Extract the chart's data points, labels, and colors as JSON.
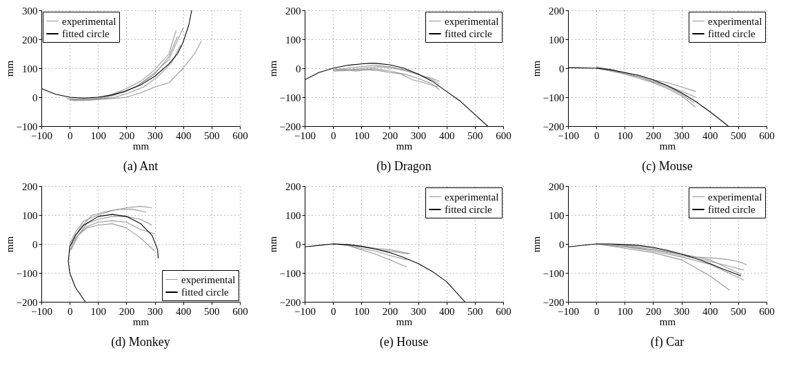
{
  "chart_data": [
    {
      "type": "line",
      "title": "(a)  Ant",
      "xlabel": "mm",
      "ylabel": "mm",
      "xlim": [
        -100,
        600
      ],
      "ylim": [
        -100,
        300
      ],
      "xticks": [
        -100,
        0,
        100,
        200,
        300,
        400,
        500,
        600
      ],
      "yticks": [
        -100,
        0,
        100,
        200,
        300
      ],
      "grid": true,
      "legend": "top left",
      "series": [
        {
          "name": "experimental",
          "color": "#999999",
          "x": [
            0,
            50,
            100,
            150,
            200,
            250,
            300,
            350,
            380
          ],
          "values": [
            -8,
            -5,
            -5,
            5,
            20,
            45,
            80,
            140,
            210
          ]
        },
        {
          "color": "#999999",
          "x": [
            -10,
            50,
            100,
            150,
            200,
            250,
            300,
            350,
            375
          ],
          "values": [
            -5,
            -10,
            -8,
            10,
            30,
            55,
            95,
            150,
            230
          ]
        },
        {
          "color": "#999999",
          "x": [
            10,
            60,
            110,
            160,
            210,
            260,
            310,
            360,
            390
          ],
          "values": [
            -12,
            -10,
            -5,
            0,
            15,
            35,
            70,
            120,
            180
          ]
        },
        {
          "color": "#999999",
          "x": [
            0,
            50,
            100,
            150,
            200,
            250,
            300,
            350,
            400,
            440,
            465
          ],
          "values": [
            -10,
            -12,
            -8,
            -5,
            0,
            15,
            35,
            50,
            100,
            150,
            195
          ]
        },
        {
          "color": "#999999",
          "x": [
            0,
            60,
            120,
            180,
            240,
            300,
            350,
            400
          ],
          "values": [
            -5,
            -8,
            0,
            15,
            40,
            85,
            130,
            240
          ]
        },
        {
          "name": "fitted circle",
          "color": "#000000",
          "x": [
            -100,
            -50,
            0,
            50,
            100,
            150,
            200,
            250,
            300,
            350,
            380,
            400,
            420,
            430
          ],
          "values": [
            30,
            10,
            0,
            -3,
            0,
            8,
            22,
            42,
            72,
            115,
            150,
            190,
            250,
            300
          ]
        }
      ]
    },
    {
      "type": "line",
      "title": "(b)  Dragon",
      "xlabel": "mm",
      "ylabel": "mm",
      "xlim": [
        -100,
        600
      ],
      "ylim": [
        -200,
        200
      ],
      "xticks": [
        -100,
        0,
        100,
        200,
        300,
        400,
        500,
        600
      ],
      "yticks": [
        -200,
        -100,
        0,
        100,
        200
      ],
      "grid": true,
      "legend": "top right",
      "series": [
        {
          "name": "experimental",
          "color": "#999999",
          "x": [
            0,
            50,
            100,
            150,
            200,
            250,
            300,
            350,
            375
          ],
          "values": [
            -5,
            0,
            5,
            10,
            5,
            -5,
            -20,
            -40,
            -55
          ]
        },
        {
          "color": "#999999",
          "x": [
            0,
            50,
            100,
            150,
            200,
            250,
            300,
            350,
            375
          ],
          "values": [
            -10,
            -8,
            -5,
            -2,
            -10,
            -20,
            -35,
            -55,
            -75
          ]
        },
        {
          "color": "#999999",
          "x": [
            10,
            60,
            110,
            160,
            210,
            260,
            310,
            350,
            375
          ],
          "values": [
            -5,
            -5,
            0,
            5,
            0,
            -10,
            -25,
            -35,
            -45
          ]
        },
        {
          "color": "#999999",
          "x": [
            0,
            40,
            80,
            120,
            160,
            200,
            240,
            280,
            320,
            370
          ],
          "values": [
            -8,
            -5,
            -10,
            -5,
            -8,
            -15,
            -20,
            -40,
            -50,
            -65
          ]
        },
        {
          "name": "fitted circle",
          "color": "#000000",
          "x": [
            -100,
            -50,
            0,
            50,
            100,
            130,
            150,
            200,
            250,
            300,
            350,
            400,
            450,
            500,
            545
          ],
          "values": [
            -40,
            -15,
            0,
            10,
            15,
            17,
            17,
            12,
            0,
            -20,
            -45,
            -80,
            -115,
            -160,
            -200
          ]
        }
      ]
    },
    {
      "type": "line",
      "title": "(c)  Mouse",
      "xlabel": "mm",
      "ylabel": "mm",
      "xlim": [
        -100,
        600
      ],
      "ylim": [
        -200,
        200
      ],
      "xticks": [
        -100,
        0,
        100,
        200,
        300,
        400,
        500,
        600
      ],
      "yticks": [
        -200,
        -100,
        0,
        100,
        200
      ],
      "grid": true,
      "legend": "top right",
      "series": [
        {
          "name": "experimental",
          "color": "#999999",
          "x": [
            0,
            50,
            100,
            150,
            200,
            250,
            300,
            350
          ],
          "values": [
            5,
            -5,
            -15,
            -25,
            -40,
            -50,
            -65,
            -80
          ]
        },
        {
          "color": "#999999",
          "x": [
            0,
            50,
            100,
            150,
            200,
            250,
            300,
            350
          ],
          "values": [
            0,
            -8,
            -18,
            -30,
            -45,
            -60,
            -80,
            -100
          ]
        },
        {
          "color": "#999999",
          "x": [
            0,
            50,
            100,
            150,
            200,
            250,
            300,
            350
          ],
          "values": [
            0,
            -10,
            -20,
            -35,
            -50,
            -70,
            -95,
            -135
          ]
        },
        {
          "color": "#999999",
          "x": [
            0,
            50,
            100,
            150,
            200,
            250,
            300,
            345
          ],
          "values": [
            2,
            -5,
            -20,
            -30,
            -48,
            -65,
            -90,
            -120
          ]
        },
        {
          "name": "fitted circle",
          "color": "#000000",
          "x": [
            -100,
            0,
            50,
            100,
            150,
            200,
            250,
            300,
            350,
            400,
            465
          ],
          "values": [
            2,
            0,
            -5,
            -15,
            -25,
            -40,
            -60,
            -85,
            -115,
            -150,
            -200
          ]
        }
      ]
    },
    {
      "type": "line",
      "title": "(d)  Monkey",
      "xlabel": "mm",
      "ylabel": "mm",
      "xlim": [
        -100,
        600
      ],
      "ylim": [
        -200,
        200
      ],
      "xticks": [
        -100,
        0,
        100,
        200,
        300,
        400,
        500,
        600
      ],
      "yticks": [
        -200,
        -100,
        0,
        100,
        200
      ],
      "grid": true,
      "legend": "bottom right",
      "series": [
        {
          "name": "experimental",
          "color": "#999999",
          "x": [
            0,
            20,
            50,
            100,
            150,
            200,
            250,
            290
          ],
          "values": [
            0,
            40,
            80,
            100,
            115,
            125,
            130,
            125
          ]
        },
        {
          "color": "#999999",
          "x": [
            5,
            30,
            60,
            100,
            150,
            200,
            250,
            290
          ],
          "values": [
            -20,
            30,
            70,
            85,
            95,
            95,
            85,
            65
          ]
        },
        {
          "color": "#999999",
          "x": [
            0,
            20,
            60,
            100,
            150,
            200,
            250,
            300
          ],
          "values": [
            -25,
            20,
            60,
            75,
            80,
            75,
            50,
            35
          ]
        },
        {
          "color": "#999999",
          "x": [
            0,
            30,
            60,
            100,
            150,
            200,
            250,
            300
          ],
          "values": [
            -10,
            30,
            55,
            65,
            70,
            55,
            20,
            -25
          ]
        },
        {
          "color": "#999999",
          "x": [
            10,
            40,
            80,
            120,
            170,
            220,
            270
          ],
          "values": [
            10,
            60,
            100,
            110,
            120,
            120,
            110
          ]
        },
        {
          "name": "fitted circle",
          "color": "#000000",
          "x": [
            55,
            20,
            0,
            -5,
            0,
            20,
            50,
            100,
            150,
            200,
            250,
            290,
            310,
            312
          ],
          "values": [
            -200,
            -150,
            -100,
            -60,
            -10,
            30,
            65,
            95,
            102,
            95,
            70,
            30,
            -20,
            -50
          ]
        }
      ]
    },
    {
      "type": "line",
      "title": "(e)  House",
      "xlabel": "mm",
      "ylabel": "mm",
      "xlim": [
        -100,
        600
      ],
      "ylim": [
        -200,
        200
      ],
      "xticks": [
        -100,
        0,
        100,
        200,
        300,
        400,
        500,
        600
      ],
      "yticks": [
        -200,
        -100,
        0,
        100,
        200
      ],
      "grid": true,
      "legend": "top right",
      "series": [
        {
          "name": "experimental",
          "color": "#999999",
          "x": [
            0,
            50,
            100,
            150,
            200,
            265
          ],
          "values": [
            0,
            -3,
            -10,
            -18,
            -25,
            -35
          ]
        },
        {
          "color": "#999999",
          "x": [
            0,
            50,
            100,
            150,
            200,
            260
          ],
          "values": [
            0,
            -5,
            -15,
            -25,
            -40,
            -55
          ]
        },
        {
          "color": "#999999",
          "x": [
            0,
            50,
            100,
            150,
            200,
            260
          ],
          "values": [
            0,
            -5,
            -20,
            -35,
            -55,
            -80
          ]
        },
        {
          "color": "#999999",
          "x": [
            0,
            50,
            100,
            150,
            200,
            270
          ],
          "values": [
            0,
            -2,
            -8,
            -15,
            -20,
            -33
          ]
        },
        {
          "name": "fitted circle",
          "color": "#000000",
          "x": [
            -100,
            -50,
            0,
            50,
            100,
            150,
            200,
            250,
            300,
            350,
            400,
            465
          ],
          "values": [
            -10,
            -5,
            0,
            -2,
            -8,
            -18,
            -30,
            -47,
            -68,
            -95,
            -130,
            -200
          ]
        }
      ]
    },
    {
      "type": "line",
      "title": "(f)  Car",
      "xlabel": "mm",
      "ylabel": "mm",
      "xlim": [
        -100,
        600
      ],
      "ylim": [
        -200,
        200
      ],
      "xticks": [
        -100,
        0,
        100,
        200,
        300,
        400,
        500,
        600
      ],
      "yticks": [
        -200,
        -100,
        0,
        100,
        200
      ],
      "grid": true,
      "legend": "top right",
      "series": [
        {
          "name": "experimental",
          "color": "#999999",
          "x": [
            0,
            100,
            200,
            300,
            400,
            470
          ],
          "values": [
            0,
            -15,
            -30,
            -55,
            -110,
            -160
          ]
        },
        {
          "color": "#999999",
          "x": [
            0,
            100,
            200,
            300,
            400,
            520
          ],
          "values": [
            0,
            -10,
            -25,
            -45,
            -70,
            -125
          ]
        },
        {
          "color": "#999999",
          "x": [
            0,
            100,
            200,
            300,
            400,
            510
          ],
          "values": [
            0,
            -10,
            -20,
            -35,
            -55,
            -105
          ]
        },
        {
          "color": "#999999",
          "x": [
            0,
            100,
            200,
            300,
            350,
            400,
            450,
            500,
            530
          ],
          "values": [
            0,
            -5,
            -15,
            -35,
            -45,
            -48,
            -52,
            -60,
            -72
          ]
        },
        {
          "color": "#999999",
          "x": [
            0,
            100,
            200,
            300,
            400,
            520
          ],
          "values": [
            0,
            -8,
            -20,
            -40,
            -60,
            -90
          ]
        },
        {
          "name": "fitted circle",
          "color": "#000000",
          "x": [
            -100,
            0,
            50,
            100,
            150,
            200,
            250,
            300,
            350,
            400,
            450,
            510
          ],
          "values": [
            -10,
            0,
            0,
            -2,
            -5,
            -12,
            -22,
            -35,
            -50,
            -68,
            -88,
            -110
          ]
        }
      ]
    }
  ]
}
